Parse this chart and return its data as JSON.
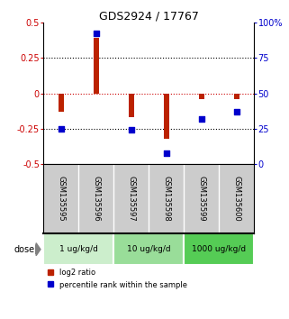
{
  "title": "GDS2924 / 17767",
  "samples": [
    "GSM135595",
    "GSM135596",
    "GSM135597",
    "GSM135598",
    "GSM135599",
    "GSM135600"
  ],
  "log2_ratio": [
    -0.13,
    0.39,
    -0.17,
    -0.32,
    -0.04,
    -0.04
  ],
  "percentile": [
    25,
    92,
    24,
    8,
    32,
    37
  ],
  "ylim_left": [
    -0.5,
    0.5
  ],
  "ylim_right": [
    0,
    100
  ],
  "yticks_left": [
    -0.5,
    -0.25,
    0,
    0.25,
    0.5
  ],
  "yticks_right": [
    0,
    25,
    50,
    75,
    100
  ],
  "ytick_labels_right": [
    "0",
    "25",
    "50",
    "75",
    "100%"
  ],
  "hlines_dotted": [
    -0.25,
    0.25
  ],
  "hline_zero_color": "#cc0000",
  "hline_other_color": "#000000",
  "bar_color": "#bb2200",
  "dot_color": "#0000cc",
  "dose_groups": [
    {
      "label": "1 ug/kg/d",
      "color": "#cceecc"
    },
    {
      "label": "10 ug/kg/d",
      "color": "#99dd99"
    },
    {
      "label": "1000 ug/kg/d",
      "color": "#55cc55"
    }
  ],
  "dose_label": "dose",
  "legend_red": "log2 ratio",
  "legend_blue": "percentile rank within the sample",
  "bar_width": 0.15,
  "plot_bg": "#ffffff",
  "sample_bg": "#cccccc",
  "title_fontsize": 9
}
